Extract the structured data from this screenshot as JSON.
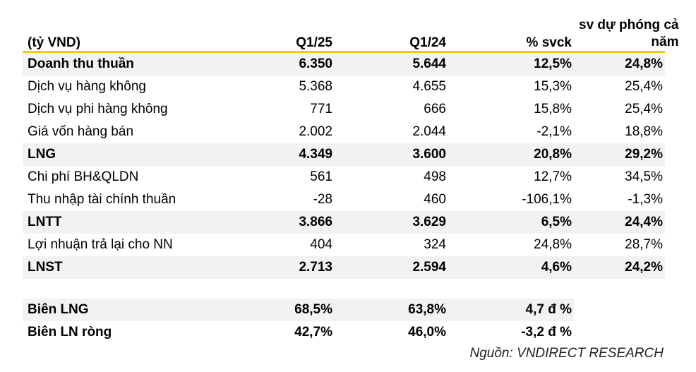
{
  "header": {
    "col0": "(tỷ VND)",
    "col1": "Q1/25",
    "col2": "Q1/24",
    "col3": "% svck",
    "col4_line1": "sv dự phóng cả",
    "col4_line2": "năm"
  },
  "rows": [
    {
      "label": "Doanh thu thuần",
      "q125": "6.350",
      "q124": "5.644",
      "svck": "12,5%",
      "forecast": "24,8%"
    },
    {
      "label": "Dịch vụ hàng không",
      "q125": "5.368",
      "q124": "4.655",
      "svck": "15,3%",
      "forecast": "25,4%"
    },
    {
      "label": "Dịch vụ phi hàng không",
      "q125": "771",
      "q124": "666",
      "svck": "15,8%",
      "forecast": "25,4%"
    },
    {
      "label": "Giá vốn hàng bán",
      "q125": "2.002",
      "q124": "2.044",
      "svck": "-2,1%",
      "forecast": "18,8%"
    },
    {
      "label": "LNG",
      "q125": "4.349",
      "q124": "3.600",
      "svck": "20,8%",
      "forecast": "29,2%"
    },
    {
      "label": "Chi phí BH&QLDN",
      "q125": "561",
      "q124": "498",
      "svck": "12,7%",
      "forecast": "34,5%"
    },
    {
      "label": "Thu nhập tài chính thuần",
      "q125": "-28",
      "q124": "460",
      "svck": "-106,1%",
      "forecast": "-1,3%"
    },
    {
      "label": "LNTT",
      "q125": "3.866",
      "q124": "3.629",
      "svck": "6,5%",
      "forecast": "24,4%"
    },
    {
      "label": "Lợi nhuận trả lại cho NN",
      "q125": "404",
      "q124": "324",
      "svck": "24,8%",
      "forecast": "28,7%"
    },
    {
      "label": "LNST",
      "q125": "2.713",
      "q124": "2.594",
      "svck": "4,6%",
      "forecast": "24,2%"
    }
  ],
  "margins": [
    {
      "label": "Biên LNG",
      "q125": "68,5%",
      "q124": "63,8%",
      "svck": "4,7 đ %"
    },
    {
      "label": "Biên LN ròng",
      "q125": "42,7%",
      "q124": "46,0%",
      "svck": "-3,2 đ %"
    }
  ],
  "source": "Nguồn: VNDIRECT RESEARCH"
}
